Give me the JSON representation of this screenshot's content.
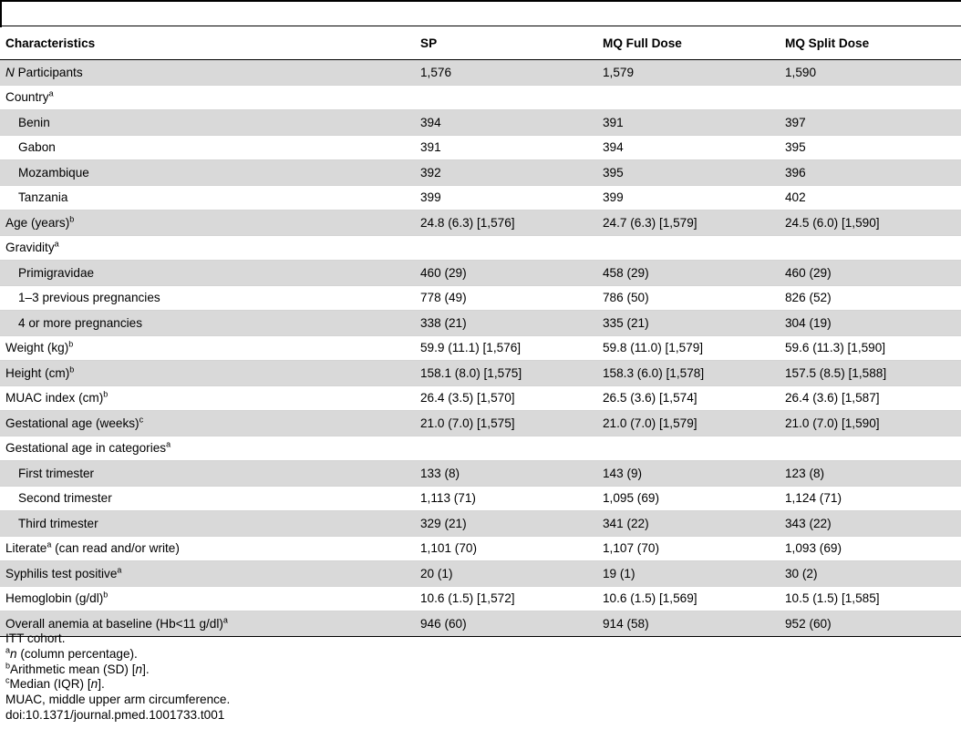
{
  "header": {
    "characteristics": "Characteristics",
    "sp": "SP",
    "mq_full": "MQ Full Dose",
    "mq_split": "MQ Split Dose"
  },
  "rows": {
    "participants": {
      "label_italic": "N",
      "label": " Participants",
      "sp": "1,576",
      "full": "1,579",
      "split": "1,590"
    },
    "country": {
      "label": "Country",
      "sup": "a"
    },
    "benin": {
      "label": "Benin",
      "sp": "394",
      "full": "391",
      "split": "397"
    },
    "gabon": {
      "label": "Gabon",
      "sp": "391",
      "full": "394",
      "split": "395"
    },
    "mozambique": {
      "label": "Mozambique",
      "sp": "392",
      "full": "395",
      "split": "396"
    },
    "tanzania": {
      "label": "Tanzania",
      "sp": "399",
      "full": "399",
      "split": "402"
    },
    "age": {
      "label": "Age (years)",
      "sup": "b",
      "sp": "24.8 (6.3) [1,576]",
      "full": "24.7 (6.3) [1,579]",
      "split": "24.5 (6.0) [1,590]"
    },
    "gravidity": {
      "label": "Gravidity",
      "sup": "a"
    },
    "primigravidae": {
      "label": "Primigravidae",
      "sp": "460 (29)",
      "full": "458 (29)",
      "split": "460 (29)"
    },
    "prev13": {
      "label": "1–3 previous pregnancies",
      "sp": "778 (49)",
      "full": "786 (50)",
      "split": "826 (52)"
    },
    "prev4": {
      "label": "4 or more pregnancies",
      "sp": "338 (21)",
      "full": "335 (21)",
      "split": "304 (19)"
    },
    "weight": {
      "label": "Weight (kg)",
      "sup": "b",
      "sp": "59.9 (11.1) [1,576]",
      "full": "59.8 (11.0) [1,579]",
      "split": "59.6 (11.3) [1,590]"
    },
    "height": {
      "label": "Height (cm)",
      "sup": "b",
      "sp": "158.1 (8.0) [1,575]",
      "full": "158.3 (6.0) [1,578]",
      "split": "157.5 (8.5) [1,588]"
    },
    "muac": {
      "label": "MUAC index (cm)",
      "sup": "b",
      "sp": "26.4 (3.5) [1,570]",
      "full": "26.5 (3.6) [1,574]",
      "split": "26.4 (3.6) [1,587]"
    },
    "gest_age": {
      "label": "Gestational age (weeks)",
      "sup": "c",
      "sp": "21.0 (7.0) [1,575]",
      "full": "21.0 (7.0) [1,579]",
      "split": "21.0 (7.0) [1,590]"
    },
    "gest_cat": {
      "label": "Gestational age in categories",
      "sup": "a"
    },
    "first_tri": {
      "label": "First trimester",
      "sp": "133 (8)",
      "full": "143 (9)",
      "split": "123 (8)"
    },
    "second_tri": {
      "label": "Second trimester",
      "sp": "1,113 (71)",
      "full": "1,095 (69)",
      "split": "1,124 (71)"
    },
    "third_tri": {
      "label": "Third trimester",
      "sp": "329 (21)",
      "full": "341 (22)",
      "split": "343 (22)"
    },
    "literate": {
      "label": "Literate",
      "sup": "a",
      "label_after": " (can read and/or write)",
      "sp": "1,101 (70)",
      "full": "1,107 (70)",
      "split": "1,093 (69)"
    },
    "syphilis": {
      "label": "Syphilis test positive",
      "sup": "a",
      "sp": "20 (1)",
      "full": "19 (1)",
      "split": "30 (2)"
    },
    "hemoglobin": {
      "label": "Hemoglobin (g/dl)",
      "sup": "b",
      "sp": "10.6 (1.5) [1,572]",
      "full": "10.6 (1.5) [1,569]",
      "split": "10.5 (1.5) [1,585]"
    },
    "anemia": {
      "label": "Overall anemia at baseline (Hb<11 g/dl)",
      "sup": "a",
      "sp": "946 (60)",
      "full": "914 (58)",
      "split": "952 (60)"
    }
  },
  "notes": {
    "itt": "ITT cohort.",
    "a_sup": "a",
    "a_italic": "n",
    "a_text": " (column percentage).",
    "b_sup": "b",
    "b_text_1": "Arithmetic mean (SD) [",
    "b_italic": "n",
    "b_text_2": "].",
    "c_sup": "c",
    "c_text_1": "Median (IQR) [",
    "c_italic": "n",
    "c_text_2": "].",
    "muac": "MUAC, middle upper arm circumference.",
    "doi": "doi:10.1371/journal.pmed.1001733.t001"
  }
}
